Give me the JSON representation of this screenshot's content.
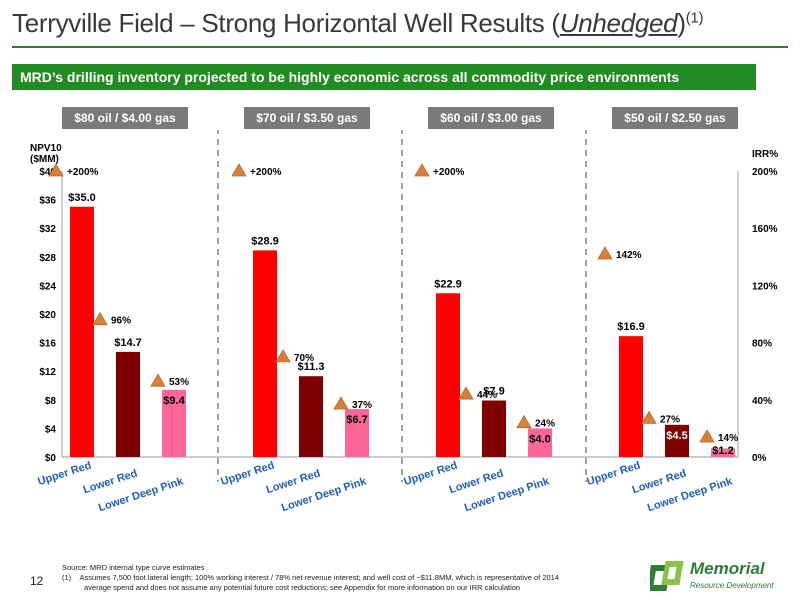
{
  "header": {
    "title_main": "Terryville Field – Strong Horizontal Well Results (",
    "title_underlined": "Unhedged",
    "title_close": ")",
    "title_sup": "(1)"
  },
  "banner": {
    "text": "MRD’s drilling inventory projected to be highly economic across all commodity price environments"
  },
  "price_scenarios": [
    "$80 oil / $4.00 gas",
    "$70 oil / $3.50 gas",
    "$60 oil / $3.00 gas",
    "$50 oil / $2.50 gas"
  ],
  "colors": {
    "upper_red": "#ff0000",
    "lower_red": "#7f0000",
    "lower_deep_pink": "#ff6699",
    "irr_marker": "#d8803a",
    "brand_green": "#228b22",
    "price_box": "#7a7a7a"
  },
  "chart_data": {
    "type": "bar",
    "left_axis": {
      "title_line1": "NPV10",
      "title_line2": "($MM)",
      "ticks": [
        "$0",
        "$4",
        "$8",
        "$12",
        "$16",
        "$20",
        "$24",
        "$28",
        "$32",
        "$36",
        "$40"
      ],
      "ylim": [
        0,
        40
      ]
    },
    "right_axis": {
      "title": "IRR%",
      "ticks": [
        "0%",
        "40%",
        "80%",
        "120%",
        "160%",
        "200%"
      ],
      "ylim": [
        0,
        200
      ]
    },
    "categories": [
      "Upper Red",
      "Lower Red",
      "Lower Deep Pink"
    ],
    "groups": [
      {
        "scenario": "$80 oil / $4.00 gas",
        "npv": [
          35.0,
          14.7,
          9.4
        ],
        "npv_labels": [
          "$35.0",
          "$14.7",
          "$9.4"
        ],
        "irr": [
          200,
          96,
          53
        ],
        "irr_labels": [
          "+200%",
          "96%",
          "53%"
        ]
      },
      {
        "scenario": "$70 oil / $3.50 gas",
        "npv": [
          28.9,
          11.3,
          6.7
        ],
        "npv_labels": [
          "$28.9",
          "$11.3",
          "$6.7"
        ],
        "irr": [
          200,
          70,
          37
        ],
        "irr_labels": [
          "+200%",
          "70%",
          "37%"
        ]
      },
      {
        "scenario": "$60 oil / $3.00 gas",
        "npv": [
          22.9,
          7.9,
          4.0
        ],
        "npv_labels": [
          "$22.9",
          "$7.9",
          "$4.0"
        ],
        "irr": [
          200,
          44,
          24
        ],
        "irr_labels": [
          "+200%",
          "44%",
          "24%"
        ]
      },
      {
        "scenario": "$50 oil / $2.50 gas",
        "npv": [
          16.9,
          4.5,
          1.2
        ],
        "npv_labels": [
          "$16.9",
          "$4.5",
          "$1.2"
        ],
        "irr": [
          142,
          27,
          14
        ],
        "irr_labels": [
          "142%",
          "27%",
          "14%"
        ]
      }
    ]
  },
  "footnotes": {
    "source": "Source: MRD internal type curve estimates",
    "note1_num": "(1)",
    "note1_line1": "Assumes 7,500 foot lateral length; 100% working interest / 78% net revenue interest; and well cost of ~$11.8MM, which is representative of 2014",
    "note1_line2": "average spend and does not assume any potential future cost reductions; see Appendix for more information on our IRR calculation"
  },
  "page_number": "12",
  "logo": {
    "name": "Memorial",
    "tagline": "Resource Development"
  }
}
